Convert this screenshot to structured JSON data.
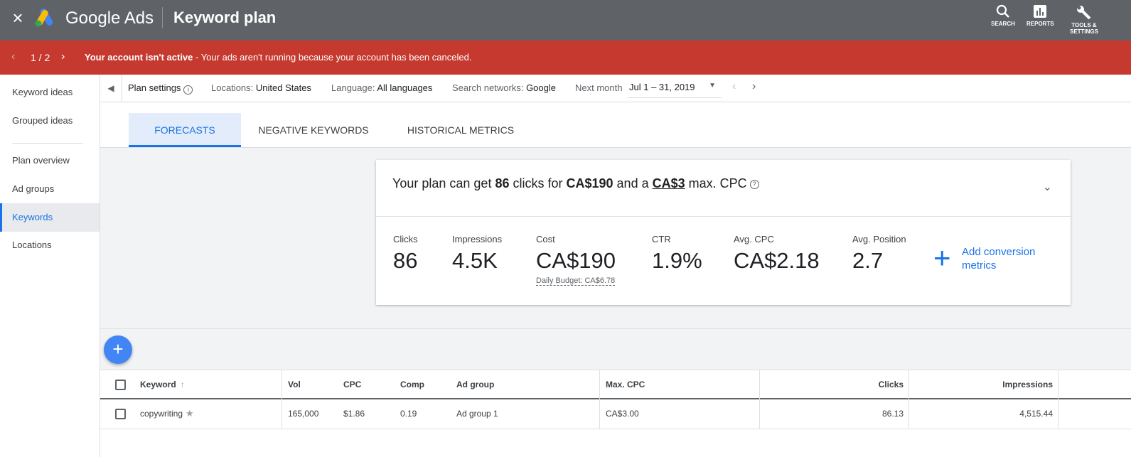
{
  "topbar": {
    "close_icon": "close-icon",
    "brand": "Google Ads",
    "title": "Keyword plan",
    "actions": [
      {
        "label": "SEARCH",
        "icon": "search-icon"
      },
      {
        "label": "REPORTS",
        "icon": "reports-icon"
      },
      {
        "label_line1": "TOOLS &",
        "label_line2": "SETTINGS",
        "icon": "wrench-icon"
      }
    ]
  },
  "alert": {
    "count": "1 / 2",
    "bold": "Your account isn't active",
    "text": " - Your ads aren't running because your account has been canceled."
  },
  "sidebar": {
    "items": [
      {
        "label": "Keyword ideas"
      },
      {
        "label": "Grouped ideas"
      },
      {
        "label": "Plan overview"
      },
      {
        "label": "Ad groups"
      },
      {
        "label": "Keywords",
        "active": true
      },
      {
        "label": "Locations"
      }
    ]
  },
  "settings": {
    "plan_settings": "Plan settings",
    "locations_label": "Locations:",
    "locations_value": "United States",
    "language_label": "Language:",
    "language_value": "All languages",
    "networks_label": "Search networks:",
    "networks_value": "Google",
    "period_label": "Next month",
    "date_value": "Jul 1 – 31, 2019"
  },
  "tabs": [
    {
      "label": "FORECASTS",
      "active": true
    },
    {
      "label": "NEGATIVE KEYWORDS"
    },
    {
      "label": "HISTORICAL METRICS"
    }
  ],
  "forecast": {
    "summary_pre": "Your plan can get ",
    "clicks": "86",
    "summary_mid1": " clicks for ",
    "cost": "CA$190",
    "summary_mid2": " and a ",
    "max_cpc": "CA$3",
    "summary_post": " max. CPC",
    "metrics": [
      {
        "label": "Clicks",
        "value": "86"
      },
      {
        "label": "Impressions",
        "value": "4.5K"
      },
      {
        "label": "Cost",
        "value": "CA$190",
        "sub": "Daily Budget: CA$6.78"
      },
      {
        "label": "CTR",
        "value": "1.9%"
      },
      {
        "label": "Avg. CPC",
        "value": "CA$2.18"
      },
      {
        "label": "Avg. Position",
        "value": "2.7"
      }
    ],
    "add_conversion": "Add conversion metrics"
  },
  "table": {
    "headers": {
      "keyword": "Keyword",
      "vol": "Vol",
      "cpc": "CPC",
      "comp": "Comp",
      "ad_group": "Ad group",
      "max_cpc": "Max. CPC",
      "clicks": "Clicks",
      "impressions": "Impressions"
    },
    "rows": [
      {
        "keyword": "copywriting",
        "vol": "165,000",
        "cpc": "$1.86",
        "comp": "0.19",
        "ad_group": "Ad group 1",
        "max_cpc": "CA$3.00",
        "clicks": "86.13",
        "impressions": "4,515.44"
      }
    ]
  },
  "colors": {
    "topbar": "#5f6368",
    "alert": "#c5392f",
    "accent": "#1a73e8",
    "fab": "#4285f4"
  }
}
